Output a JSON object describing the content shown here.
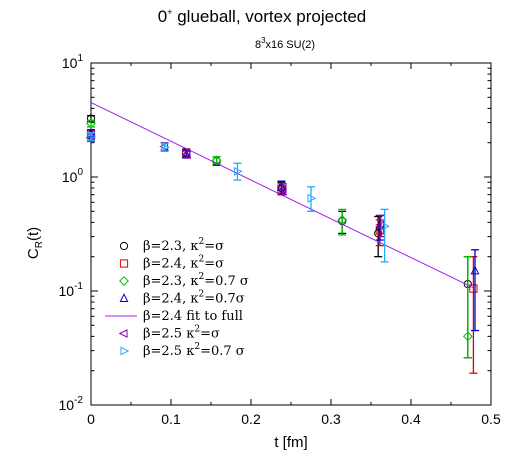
{
  "chart_data": {
    "type": "scatter",
    "title": "0⁺ glueball, vortex projected",
    "title_main": "0",
    "title_sup": "+",
    "title_rest": " glueball, vortex projected",
    "subtitle_a": "8",
    "subtitle_sup": "3",
    "subtitle_b": "x16 SU(2)",
    "xlabel": "t [fm]",
    "ylabel_main": "C",
    "ylabel_sub": "R",
    "ylabel_rest": "(t)",
    "xlim": [
      0,
      0.5
    ],
    "ylim": [
      0.01,
      10
    ],
    "yscale": "log",
    "xticks": [
      "0",
      "0.1",
      "0.2",
      "0.3",
      "0.4",
      "0.5"
    ],
    "xtick_values": [
      0,
      0.1,
      0.2,
      0.3,
      0.4,
      0.5
    ],
    "yticks": [
      {
        "value": 0.01,
        "base": "10",
        "exp": "-2"
      },
      {
        "value": 0.1,
        "base": "10",
        "exp": "-1"
      },
      {
        "value": 1,
        "base": "10",
        "exp": "0"
      },
      {
        "value": 10,
        "base": "10",
        "exp": "1"
      }
    ],
    "legend_position": "center-left",
    "series": [
      {
        "name": "β=2.3, κ²=σ",
        "label_parts": [
          "β=2.3, κ",
          "2",
          "=σ"
        ],
        "color": "#000000",
        "marker": "circle",
        "points": [
          {
            "x": 0,
            "y": 3.25,
            "lo": 3.05,
            "hi": 3.45
          },
          {
            "x": 0.119,
            "y": 1.62,
            "lo": 1.48,
            "hi": 1.76
          },
          {
            "x": 0.157,
            "y": 1.38,
            "lo": 1.27,
            "hi": 1.5
          },
          {
            "x": 0.238,
            "y": 0.8,
            "lo": 0.7,
            "hi": 0.9
          },
          {
            "x": 0.314,
            "y": 0.41,
            "lo": 0.32,
            "hi": 0.5
          },
          {
            "x": 0.359,
            "y": 0.32,
            "lo": 0.2,
            "hi": 0.45
          },
          {
            "x": 0.471,
            "y": 0.115,
            "lo": 0.026,
            "hi": 0.2
          }
        ]
      },
      {
        "name": "β=2.4, κ²=σ",
        "label_parts": [
          "β=2.4, κ",
          "2",
          "=σ"
        ],
        "color": "#dd0000",
        "marker": "square",
        "points": [
          {
            "x": 0,
            "y": 2.35,
            "lo": 2.15,
            "hi": 2.55
          },
          {
            "x": 0.119,
            "y": 1.6,
            "lo": 1.48,
            "hi": 1.72
          },
          {
            "x": 0.238,
            "y": 0.78,
            "lo": 0.7,
            "hi": 0.87
          },
          {
            "x": 0.361,
            "y": 0.34,
            "lo": 0.25,
            "hi": 0.42
          },
          {
            "x": 0.478,
            "y": 0.105,
            "lo": 0.019,
            "hi": 0.2
          }
        ]
      },
      {
        "name": "β=2.3, κ²=0.7 σ",
        "label_parts": [
          "β=2.3, κ",
          "2",
          "=0.7 σ"
        ],
        "color": "#00c000",
        "marker": "diamond",
        "points": [
          {
            "x": 0,
            "y": 2.95,
            "lo": 2.75,
            "hi": 3.15
          },
          {
            "x": 0.157,
            "y": 1.4,
            "lo": 1.3,
            "hi": 1.5
          },
          {
            "x": 0.314,
            "y": 0.42,
            "lo": 0.31,
            "hi": 0.52
          },
          {
            "x": 0.471,
            "y": 0.04,
            "lo": 0.026,
            "hi": 0.2
          }
        ]
      },
      {
        "name": "β=2.4, κ²=0.7σ",
        "label_parts": [
          "β=2.4, κ",
          "2",
          "=0.7σ"
        ],
        "color": "#0000cc",
        "marker": "triangle-up",
        "points": [
          {
            "x": 0,
            "y": 2.4,
            "lo": 2.2,
            "hi": 2.6
          },
          {
            "x": 0.119,
            "y": 1.58,
            "lo": 1.47,
            "hi": 1.7
          },
          {
            "x": 0.238,
            "y": 0.82,
            "lo": 0.72,
            "hi": 0.92
          },
          {
            "x": 0.361,
            "y": 0.37,
            "lo": 0.28,
            "hi": 0.46
          },
          {
            "x": 0.48,
            "y": 0.15,
            "lo": 0.045,
            "hi": 0.23
          }
        ]
      },
      {
        "name": "β=2.4 fit to full",
        "label_parts": [
          "β=2.4 fit to full"
        ],
        "color": "#a020f0",
        "marker": "line",
        "line": {
          "x0": 0,
          "y0": 4.5,
          "x1": 0.48,
          "y1": 0.105
        }
      },
      {
        "name": "β=2.5 κ²=σ",
        "label_parts": [
          "β=2.5 κ",
          "2",
          "=σ"
        ],
        "color": "#8000a0",
        "marker": "triangle-left",
        "points": [
          {
            "x": 0,
            "y": 2.2,
            "lo": 2.05,
            "hi": 2.35
          },
          {
            "x": 0.092,
            "y": 1.85,
            "lo": 1.72,
            "hi": 2.0
          },
          {
            "x": 0.12,
            "y": 1.58,
            "lo": 1.47,
            "hi": 1.7
          },
          {
            "x": 0.24,
            "y": 0.78,
            "lo": 0.7,
            "hi": 0.87
          },
          {
            "x": 0.362,
            "y": 0.38,
            "lo": 0.3,
            "hi": 0.46
          }
        ]
      },
      {
        "name": "β=2.5 κ²=0.7 σ",
        "label_parts": [
          "β=2.5 κ",
          "2",
          "=0.7 σ"
        ],
        "color": "#22aaff",
        "marker": "triangle-right",
        "points": [
          {
            "x": 0,
            "y": 2.25,
            "lo": 2.08,
            "hi": 2.45
          },
          {
            "x": 0.092,
            "y": 1.82,
            "lo": 1.68,
            "hi": 1.98
          },
          {
            "x": 0.183,
            "y": 1.12,
            "lo": 0.94,
            "hi": 1.32
          },
          {
            "x": 0.275,
            "y": 0.65,
            "lo": 0.5,
            "hi": 0.82
          },
          {
            "x": 0.367,
            "y": 0.37,
            "lo": 0.18,
            "hi": 0.52
          }
        ]
      }
    ]
  }
}
